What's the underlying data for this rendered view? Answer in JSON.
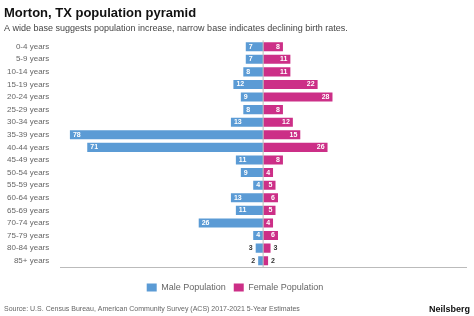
{
  "chart_data": {
    "type": "bar",
    "orientation": "horizontal",
    "title": "Morton, TX population pyramid",
    "subtitle": "A wide base suggests population increase, narrow base indicates declining birth rates.",
    "annotations": [
      "Source: U.S. Census Bureau, American Community Survey (ACS) 2017-2021 5-Year Estimates",
      "Neilsberg"
    ],
    "categories": [
      "85+ years",
      "80-84 years",
      "75-79 years",
      "70-74 years",
      "65-69 years",
      "60-64 years",
      "55-59 years",
      "50-54 years",
      "45-49 years",
      "40-44 years",
      "35-39 years",
      "30-34 years",
      "25-29 years",
      "20-24 years",
      "15-19 years",
      "10-14 years",
      "5-9 years",
      "0-4 years"
    ],
    "series": [
      {
        "name": "Male Population",
        "color": "#5b9bd5",
        "values": [
          2,
          3,
          4,
          26,
          11,
          13,
          4,
          9,
          11,
          71,
          78,
          13,
          8,
          9,
          12,
          8,
          7,
          7
        ]
      },
      {
        "name": "Female Population",
        "color": "#cc2f87",
        "values": [
          2,
          3,
          6,
          4,
          5,
          6,
          5,
          4,
          8,
          26,
          15,
          12,
          8,
          28,
          22,
          11,
          11,
          8
        ]
      }
    ],
    "xlim": [
      -81.9,
      81.9
    ],
    "xticks": [],
    "grid": false,
    "legend": "bottom",
    "data_labels": true,
    "tick_labels": "y"
  }
}
